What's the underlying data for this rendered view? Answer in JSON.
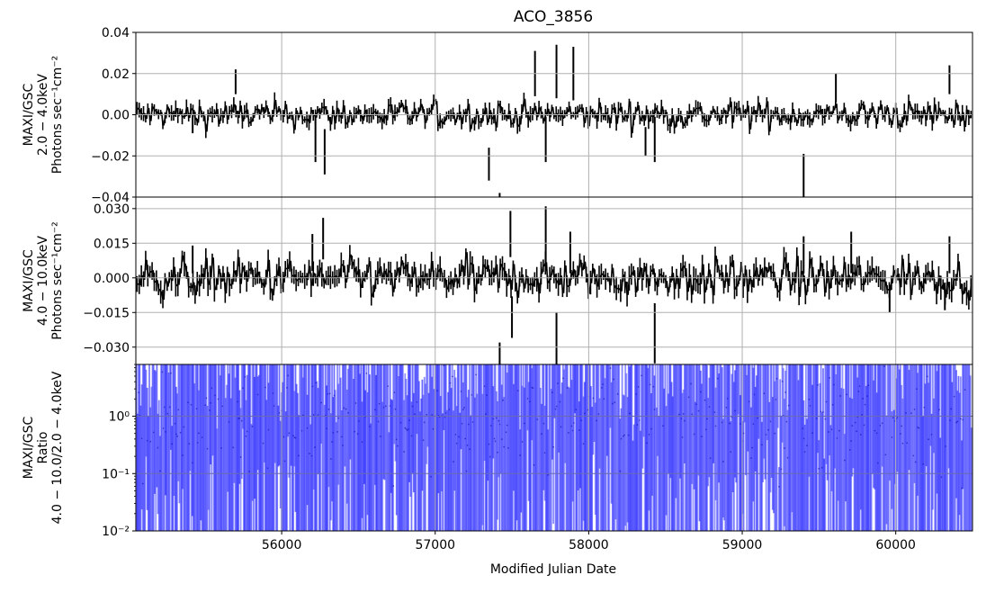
{
  "chart_data": {
    "title": "ACO_3856",
    "xlabel": "Modified Julian Date",
    "xlim": [
      55050,
      60500
    ],
    "x_ticks": [
      56000,
      57000,
      58000,
      59000,
      60000
    ],
    "x_tick_labels": [
      "56000",
      "57000",
      "58000",
      "59000",
      "60000"
    ],
    "grid": true,
    "panels": [
      {
        "id": "soft",
        "type": "line",
        "ylabel_lines": [
          "MAXI/GSC",
          "2.0 − 4.0keV",
          "Photons sec⁻¹cm⁻²"
        ],
        "ylim": [
          -0.04,
          0.04
        ],
        "y_ticks": [
          -0.04,
          -0.02,
          0.0,
          0.02,
          0.04
        ],
        "y_tick_labels": [
          "−0.04",
          "−0.02",
          "0.00",
          "0.02",
          "0.04"
        ],
        "color": "#000000",
        "noise_amplitude": 0.003,
        "spikes": [
          {
            "x": 55420,
            "y": -0.0045,
            "err": 0.0045
          },
          {
            "x": 55700,
            "y": 0.016,
            "err": 0.006
          },
          {
            "x": 56220,
            "y": -0.012,
            "err": 0.011
          },
          {
            "x": 56280,
            "y": -0.018,
            "err": 0.011
          },
          {
            "x": 57350,
            "y": -0.024,
            "err": 0.008
          },
          {
            "x": 57420,
            "y": -0.04,
            "err": 0.002
          },
          {
            "x": 57650,
            "y": 0.02,
            "err": 0.011
          },
          {
            "x": 57720,
            "y": -0.012,
            "err": 0.011
          },
          {
            "x": 57790,
            "y": 0.021,
            "err": 0.013
          },
          {
            "x": 57900,
            "y": 0.02,
            "err": 0.013
          },
          {
            "x": 58370,
            "y": -0.013,
            "err": 0.007
          },
          {
            "x": 58430,
            "y": -0.012,
            "err": 0.011
          },
          {
            "x": 59400,
            "y": -0.03,
            "err": 0.011
          },
          {
            "x": 59610,
            "y": 0.013,
            "err": 0.007
          },
          {
            "x": 60350,
            "y": 0.017,
            "err": 0.007
          }
        ]
      },
      {
        "id": "hard",
        "type": "line",
        "ylabel_lines": [
          "MAXI/GSC",
          "4.0 − 10.0keV",
          "Photons sec⁻¹cm⁻²"
        ],
        "ylim": [
          -0.0375,
          0.035
        ],
        "y_ticks": [
          -0.03,
          -0.015,
          0.0,
          0.015,
          0.03
        ],
        "y_tick_labels": [
          "−0.030",
          "−0.015",
          "0.000",
          "0.015",
          "0.030"
        ],
        "color": "#000000",
        "noise_amplitude": 0.004,
        "spikes": [
          {
            "x": 55420,
            "y": 0.008,
            "err": 0.006
          },
          {
            "x": 56200,
            "y": 0.011,
            "err": 0.008
          },
          {
            "x": 56270,
            "y": 0.017,
            "err": 0.009
          },
          {
            "x": 57420,
            "y": -0.033,
            "err": 0.005
          },
          {
            "x": 57490,
            "y": 0.019,
            "err": 0.01
          },
          {
            "x": 57500,
            "y": -0.017,
            "err": 0.009
          },
          {
            "x": 57720,
            "y": 0.017,
            "err": 0.014
          },
          {
            "x": 57790,
            "y": -0.027,
            "err": 0.012
          },
          {
            "x": 57880,
            "y": 0.011,
            "err": 0.009
          },
          {
            "x": 58430,
            "y": -0.024,
            "err": 0.013
          },
          {
            "x": 59400,
            "y": 0.01,
            "err": 0.008
          },
          {
            "x": 59710,
            "y": 0.011,
            "err": 0.009
          },
          {
            "x": 59960,
            "y": -0.009,
            "err": 0.006
          },
          {
            "x": 60320,
            "y": -0.008,
            "err": 0.006
          },
          {
            "x": 60350,
            "y": 0.01,
            "err": 0.008
          }
        ]
      },
      {
        "id": "ratio",
        "type": "line",
        "scale": "log",
        "ylabel_lines": [
          "MAXI/GSC",
          "Ratio",
          "4.0 − 10.0/2.0 − 4.0keV"
        ],
        "ylim": [
          0.01,
          8
        ],
        "y_ticks": [
          0.01,
          0.1,
          1
        ],
        "y_tick_labels": [
          "10⁻²",
          "10⁻¹",
          "10⁰"
        ],
        "color": "#0000ff"
      }
    ]
  }
}
